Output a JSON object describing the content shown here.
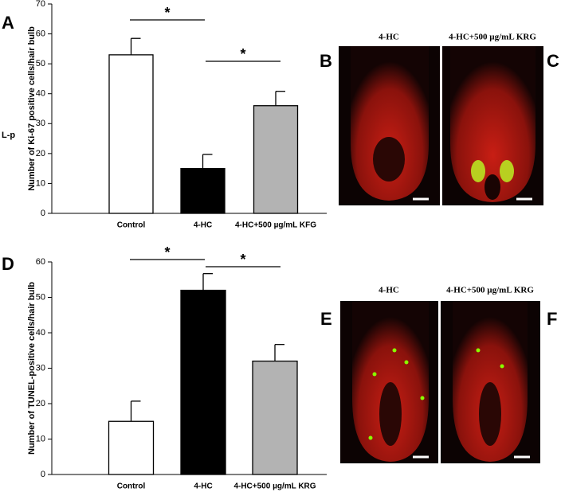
{
  "panel_labels": [
    "A",
    "B",
    "C",
    "D",
    "E",
    "F"
  ],
  "side_label": "L-p",
  "image_captions": [
    "4-HC",
    "4-HC+500 µg/mL KRG",
    "4-HC",
    "4-HC+500 µg/mL KRG"
  ],
  "chart_data": [
    {
      "type": "bar",
      "y_label": "Number of Ki-67 positive cells/hair bulb",
      "categories": [
        "Control",
        "4-HC",
        "4-HC+500 µg/mL KFG"
      ],
      "values": [
        53,
        15,
        36
      ],
      "errors": [
        5.5,
        4.7,
        4.8
      ],
      "colors": [
        "#ffffff",
        "#000000",
        "#b3b3b3"
      ],
      "ylim": [
        0,
        70
      ],
      "yticks": [
        0,
        10,
        20,
        30,
        40,
        50,
        60,
        70
      ],
      "annotations": [
        "*",
        "*"
      ]
    },
    {
      "type": "bar",
      "y_label": "Number of TUNEL-positive cells/hair bulb",
      "categories": [
        "Control",
        "4-HC",
        "4-HC+500 µg/mL  KRG"
      ],
      "values": [
        15,
        52,
        32
      ],
      "errors": [
        5.7,
        4.7,
        4.7
      ],
      "colors": [
        "#ffffff",
        "#000000",
        "#b3b3b3"
      ],
      "ylim": [
        0,
        60
      ],
      "yticks": [
        0,
        10,
        20,
        30,
        40,
        50,
        60
      ],
      "annotations": [
        "*",
        "*"
      ]
    }
  ]
}
